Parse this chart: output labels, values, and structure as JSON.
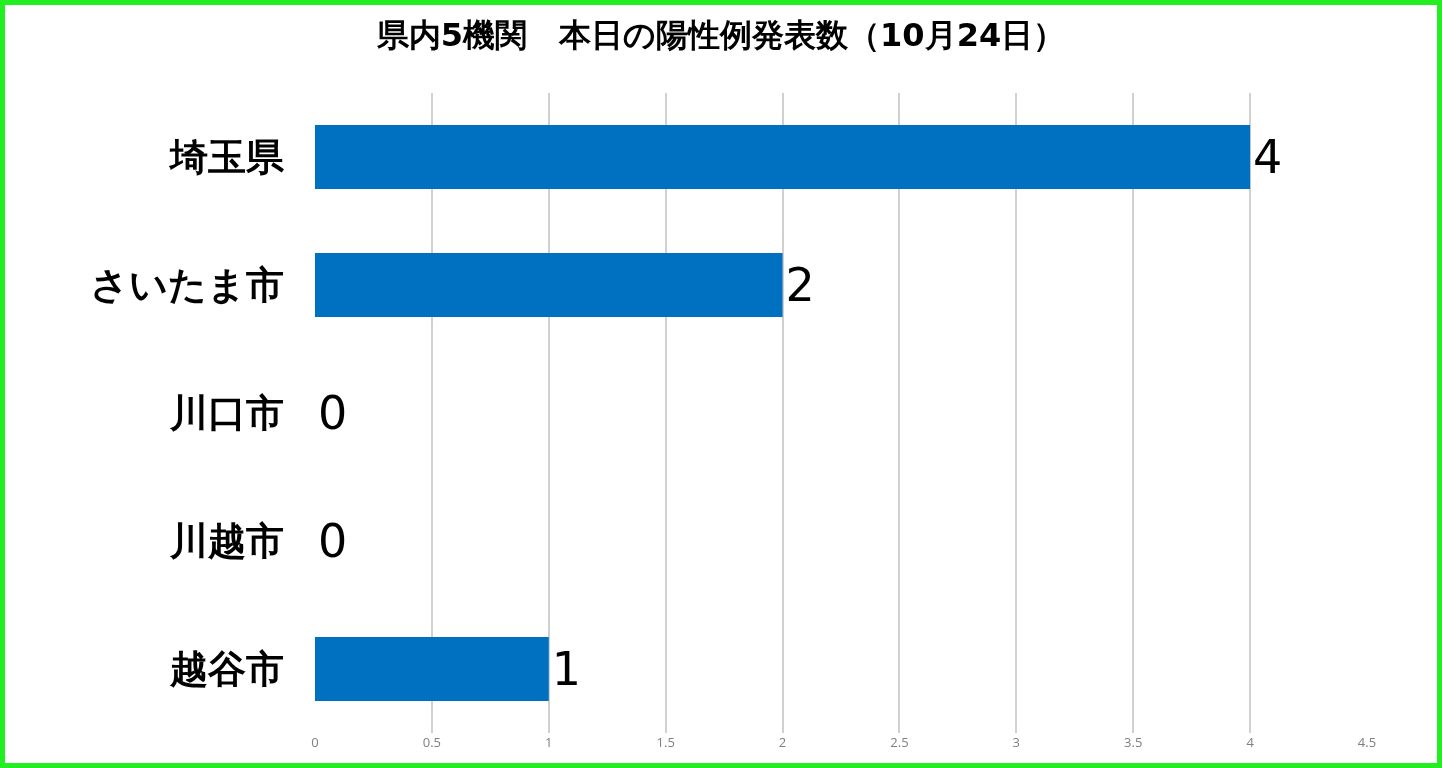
{
  "chart_data": {
    "type": "bar",
    "orientation": "horizontal",
    "title": "県内5機関　本日の陽性例発表数（10月24日）",
    "categories": [
      "埼玉県",
      "さいたま市",
      "川口市",
      "川越市",
      "越谷市"
    ],
    "values": [
      4,
      2,
      0,
      0,
      1
    ],
    "color": "#0070c0",
    "xlim": [
      0,
      4.5
    ],
    "xticks": [
      0,
      0.5,
      1,
      1.5,
      2,
      2.5,
      3,
      3.5,
      4,
      4.5
    ],
    "grid": "x",
    "data_labels": true
  }
}
